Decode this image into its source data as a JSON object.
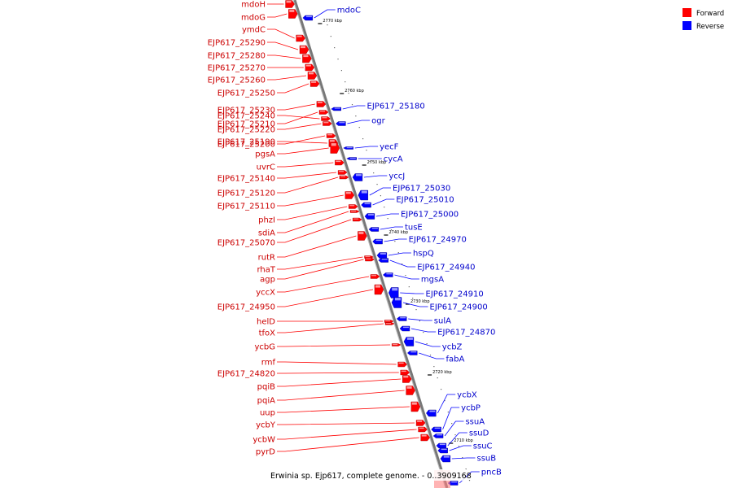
{
  "caption": "Erwinia sp. Ejp617, complete genome. - 0..3909168",
  "legend": [
    {
      "label": "Forward",
      "color": "#ff0000"
    },
    {
      "label": "Reverse",
      "color": "#0000ff"
    }
  ],
  "colors": {
    "forward": "#ff0000",
    "reverse": "#0000ff",
    "backbone": "#888888"
  },
  "ticks": [
    "2770 kbp",
    "2760 kbp",
    "2750 kbp",
    "2740 kbp",
    "2730 kbp",
    "2720 kbp",
    "2710 kbp"
  ],
  "forward_genes": [
    "mdoH",
    "mdoG",
    "ymdC",
    "EJP617_25290",
    "EJP617_25280",
    "EJP617_25270",
    "EJP617_25260",
    "EJP617_25250",
    "EJP617_25240",
    "EJP617_25230",
    "EJP617_25220",
    "EJP617_25210",
    "EJP617_25200",
    "EJP617_25190",
    "pgsA",
    "uvrC",
    "EJP617_25140",
    "EJP617_25120",
    "EJP617_25110",
    "phzI",
    "sdiA",
    "EJP617_25070",
    "rutR",
    "rhaT",
    "agp",
    "yccX",
    "EJP617_24950",
    "helD",
    "tfoX",
    "ycbG",
    "rmf",
    "EJP617_24820",
    "pqiB",
    "pqiA",
    "uup",
    "ycbY",
    "ycbW",
    "pyrD"
  ],
  "reverse_genes": [
    "mdoC",
    "EJP617_25180",
    "ogr",
    "yecF",
    "cycA",
    "yccJ",
    "EJP617_25030",
    "EJP617_25010",
    "EJP617_25000",
    "tusE",
    "EJP617_24970",
    "hspQ",
    "EJP617_24940",
    "mgsA",
    "EJP617_24910",
    "EJP617_24900",
    "sulA",
    "EJP617_24870",
    "ycbZ",
    "fabA",
    "ycbX",
    "ycbP",
    "ssuA",
    "ssuD",
    "ssuC",
    "ssuB",
    "pncB"
  ]
}
